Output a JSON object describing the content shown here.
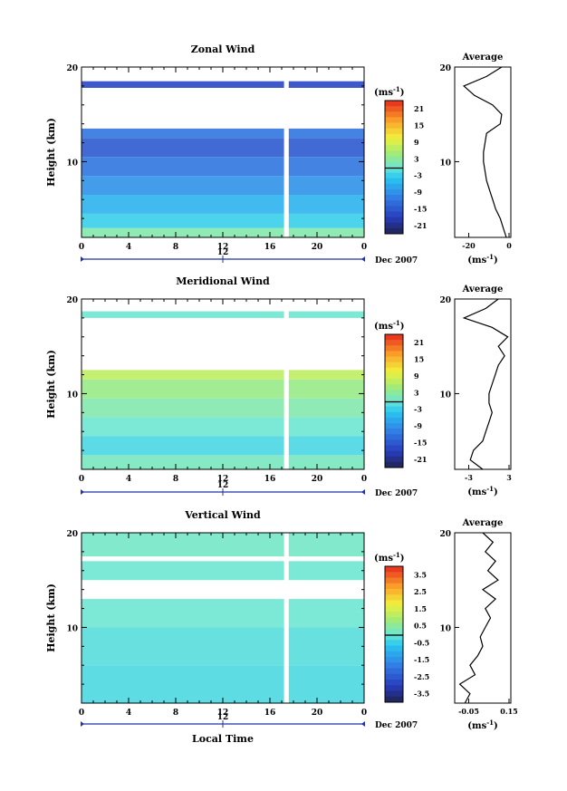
{
  "chart_data": [
    {
      "type": "heatmap",
      "title": "Zonal Wind",
      "ylabel": "Height (km)",
      "ylim": [
        2,
        20
      ],
      "yticks": [
        "10",
        "20"
      ],
      "x_ticks": [
        "0",
        "4",
        "8",
        "12",
        "16",
        "20",
        "0"
      ],
      "date_tick": "12",
      "date_label": "Dec 2007",
      "xlim_hours": [
        0,
        24
      ],
      "colorbar": {
        "unit_base": "(ms",
        "unit_exp": "-1",
        "unit_close": ")",
        "ticks": [
          "21",
          "15",
          "9",
          "3",
          "-3",
          "-9",
          "-15",
          "-21"
        ],
        "range": [
          -24,
          24
        ]
      },
      "missing_gap_hours": [
        17.2,
        17.6
      ],
      "bands": [
        {
          "z0": 2.0,
          "z1": 3.0,
          "v": 2
        },
        {
          "z0": 3.0,
          "z1": 4.5,
          "v": -3
        },
        {
          "z0": 4.5,
          "z1": 6.5,
          "v": -6
        },
        {
          "z0": 6.5,
          "z1": 8.5,
          "v": -9
        },
        {
          "z0": 8.5,
          "z1": 10.5,
          "v": -12
        },
        {
          "z0": 10.5,
          "z1": 12.5,
          "v": -15
        },
        {
          "z0": 12.5,
          "z1": 13.5,
          "v": -12
        },
        {
          "z0": 17.8,
          "z1": 18.5,
          "v": -17
        }
      ],
      "profile": {
        "title": "Average",
        "xlim": [
          -35,
          2
        ],
        "xticks": [
          "-20",
          "0"
        ],
        "xlabel_base": "(ms",
        "xlabel_exp": "-1",
        "xlabel_close": ")",
        "z": [
          2,
          3,
          4,
          5,
          6,
          7,
          8,
          9,
          10,
          11,
          12,
          13,
          14,
          15,
          16,
          17,
          18,
          19,
          20
        ],
        "x": [
          -1,
          -3,
          -5,
          -8,
          -10,
          -12,
          -14,
          -15,
          -16,
          -16,
          -15,
          -14,
          -5,
          -4,
          -10,
          -22,
          -29,
          -14,
          -4
        ]
      }
    },
    {
      "type": "heatmap",
      "title": "Meridional Wind",
      "ylabel": "Height (km)",
      "ylim": [
        2,
        20
      ],
      "yticks": [
        "10",
        "20"
      ],
      "x_ticks": [
        "0",
        "4",
        "8",
        "12",
        "16",
        "20",
        "0"
      ],
      "date_tick": "12",
      "date_label": "Dec 2007",
      "xlim_hours": [
        0,
        24
      ],
      "colorbar": {
        "unit_base": "(ms",
        "unit_exp": "-1",
        "unit_close": ")",
        "ticks": [
          "21",
          "15",
          "9",
          "3",
          "-3",
          "-9",
          "-15",
          "-21"
        ],
        "range": [
          -24,
          24
        ]
      },
      "missing_gap_hours": [
        17.2,
        17.6
      ],
      "bands": [
        {
          "z0": 2.0,
          "z1": 3.5,
          "v": 1
        },
        {
          "z0": 3.5,
          "z1": 5.5,
          "v": -2
        },
        {
          "z0": 5.5,
          "z1": 7.5,
          "v": 0
        },
        {
          "z0": 7.5,
          "z1": 9.5,
          "v": 2
        },
        {
          "z0": 9.5,
          "z1": 11.5,
          "v": 4
        },
        {
          "z0": 11.5,
          "z1": 12.5,
          "v": 7
        },
        {
          "z0": 18.0,
          "z1": 18.7,
          "v": 0
        }
      ],
      "profile": {
        "title": "Average",
        "xlim": [
          -4,
          5
        ],
        "xticks": [
          "-3",
          "3"
        ],
        "xlabel_base": "(ms",
        "xlabel_exp": "-1",
        "xlabel_close": ")",
        "z": [
          2,
          3,
          4,
          5,
          6,
          7,
          8,
          9,
          10,
          11,
          12,
          13,
          14,
          15,
          16,
          17,
          18,
          19,
          20
        ],
        "x": [
          0.5,
          -1.5,
          -1.0,
          0.5,
          1.0,
          1.5,
          2.0,
          1.5,
          1.5,
          2.0,
          2.5,
          3.0,
          4.0,
          3.0,
          4.5,
          2.0,
          -2.5,
          1.0,
          3.0
        ]
      }
    },
    {
      "type": "heatmap",
      "title": "Vertical Wind",
      "ylabel": "Height (km)",
      "ylim": [
        2,
        20
      ],
      "yticks": [
        "10",
        "20"
      ],
      "x_ticks": [
        "0",
        "4",
        "8",
        "12",
        "16",
        "20",
        "0"
      ],
      "date_tick": "12",
      "date_label": "Dec 2007",
      "xlabel": "Local Time",
      "xlim_hours": [
        0,
        24
      ],
      "colorbar": {
        "unit_base": "(ms",
        "unit_exp": "-1",
        "unit_close": ")",
        "ticks": [
          "3.5",
          "2.5",
          "1.5",
          "0.5",
          "-0.5",
          "-1.5",
          "-2.5",
          "-3.5"
        ],
        "range": [
          -4,
          4
        ]
      },
      "missing_gap_hours": [
        17.2,
        17.6
      ],
      "bands": [
        {
          "z0": 2.0,
          "z1": 6.0,
          "v": -0.3
        },
        {
          "z0": 6.0,
          "z1": 10.0,
          "v": -0.2
        },
        {
          "z0": 10.0,
          "z1": 13.0,
          "v": 0.0
        },
        {
          "z0": 15.0,
          "z1": 17.0,
          "v": 0.0
        },
        {
          "z0": 17.5,
          "z1": 20.0,
          "v": 0.1
        }
      ],
      "profile": {
        "title": "Average",
        "xlim": [
          -0.06,
          0.16
        ],
        "xticks": [
          "-0.05",
          "0.15"
        ],
        "xlabel_base": "(ms",
        "xlabel_exp": "-1",
        "xlabel_close": ")",
        "z": [
          2,
          3,
          4,
          5,
          6,
          7,
          8,
          9,
          10,
          11,
          12,
          13,
          14,
          15,
          16,
          17,
          18,
          19,
          20
        ],
        "x": [
          -0.02,
          0.0,
          -0.04,
          0.02,
          0.0,
          0.03,
          0.05,
          0.04,
          0.06,
          0.08,
          0.06,
          0.1,
          0.05,
          0.11,
          0.07,
          0.1,
          0.06,
          0.09,
          0.05
        ]
      }
    }
  ]
}
